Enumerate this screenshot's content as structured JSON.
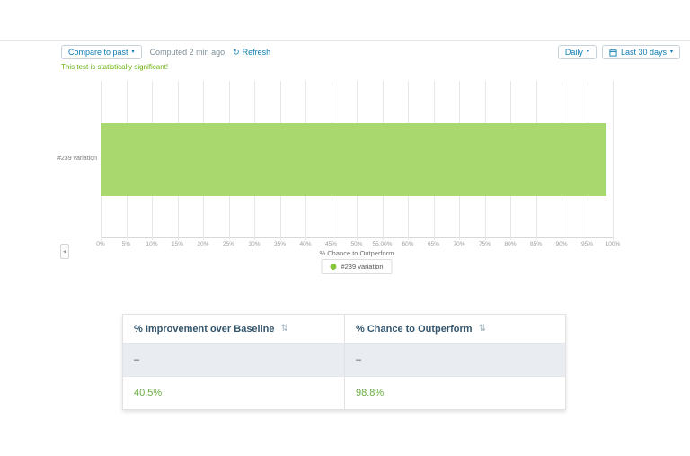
{
  "toolbar": {
    "compare_button": "Compare to past",
    "computed_text": "Computed 2 min ago",
    "refresh_label": "Refresh",
    "daily_button": "Daily",
    "range_button": "Last 30 days"
  },
  "status_banner": "This test is statistically significant!",
  "icons": {
    "caret_down": "▾",
    "refresh": "↻",
    "sort": "⇅",
    "collapse_left": "◀"
  },
  "chart_data": {
    "type": "bar",
    "orientation": "horizontal",
    "title": "",
    "categories": [
      "#239 variation"
    ],
    "values": [
      98.8
    ],
    "xlabel": "% Chance to Outperform",
    "ylabel": "",
    "xlim": [
      0,
      100
    ],
    "grid": true,
    "legend_position": "bottom",
    "x_tick_labels": [
      "0%",
      "5%",
      "10%",
      "15%",
      "20%",
      "25%",
      "30%",
      "35%",
      "40%",
      "45%",
      "50%",
      "55.00%",
      "60%",
      "65%",
      "70%",
      "75%",
      "80%",
      "85%",
      "90%",
      "95%",
      "100%"
    ],
    "bar_color": "#a9d96e",
    "legend": [
      {
        "label": "#239 variation",
        "color": "#86c440"
      }
    ]
  },
  "table": {
    "columns": [
      {
        "label": "% Improvement over Baseline"
      },
      {
        "label": "% Chance to Outperform"
      }
    ],
    "rows": [
      {
        "cells": [
          "–",
          "–"
        ],
        "highlight": true,
        "green": false
      },
      {
        "cells": [
          "40.5%",
          "98.8%"
        ],
        "highlight": false,
        "green": true
      }
    ]
  },
  "colors": {
    "accent_teal": "#0d7cb0",
    "significant_green": "#68b10c",
    "value_green": "#68ae3f",
    "bar_green": "#a9d96e",
    "row_highlight": "#e9edf1",
    "header_text": "#33566e"
  }
}
